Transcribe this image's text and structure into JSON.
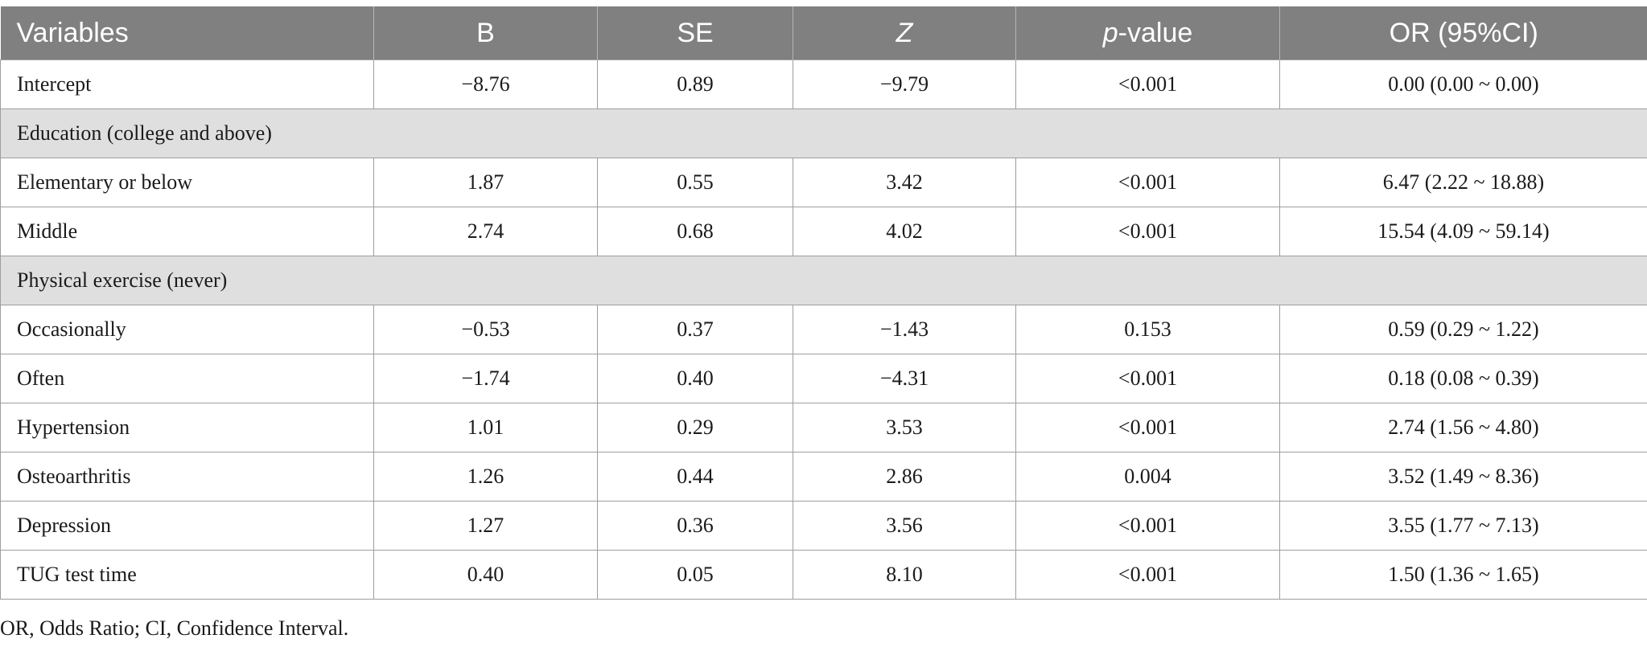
{
  "header": {
    "variables": "Variables",
    "b": "B",
    "se": "SE",
    "z": "Z",
    "p_italic": "p",
    "p_rest": "-value",
    "or": "OR (95%CI)"
  },
  "rows": [
    {
      "label": "Intercept",
      "b": "−8.76",
      "se": "0.89",
      "z": "−9.79",
      "p": "<0.001",
      "or": "0.00 (0.00 ~ 0.00)"
    },
    {
      "group": "Education (college and above)"
    },
    {
      "label": "Elementary or below",
      "b": "1.87",
      "se": "0.55",
      "z": "3.42",
      "p": "<0.001",
      "or": "6.47 (2.22 ~ 18.88)"
    },
    {
      "label": "Middle",
      "b": "2.74",
      "se": "0.68",
      "z": "4.02",
      "p": "<0.001",
      "or": "15.54 (4.09 ~ 59.14)"
    },
    {
      "group": "Physical exercise (never)"
    },
    {
      "label": "Occasionally",
      "b": "−0.53",
      "se": "0.37",
      "z": "−1.43",
      "p": "0.153",
      "or": "0.59 (0.29 ~ 1.22)"
    },
    {
      "label": "Often",
      "b": "−1.74",
      "se": "0.40",
      "z": "−4.31",
      "p": "<0.001",
      "or": "0.18 (0.08 ~ 0.39)"
    },
    {
      "label": "Hypertension",
      "b": "1.01",
      "se": "0.29",
      "z": "3.53",
      "p": "<0.001",
      "or": "2.74 (1.56 ~ 4.80)"
    },
    {
      "label": "Osteoarthritis",
      "b": "1.26",
      "se": "0.44",
      "z": "2.86",
      "p": "0.004",
      "or": "3.52 (1.49 ~ 8.36)"
    },
    {
      "label": "Depression",
      "b": "1.27",
      "se": "0.36",
      "z": "3.56",
      "p": "<0.001",
      "or": "3.55 (1.77 ~ 7.13)"
    },
    {
      "label": "TUG test time",
      "b": "0.40",
      "se": "0.05",
      "z": "8.10",
      "p": "<0.001",
      "or": "1.50 (1.36 ~ 1.65)"
    }
  ],
  "footnote": "OR, Odds Ratio; CI, Confidence Interval."
}
